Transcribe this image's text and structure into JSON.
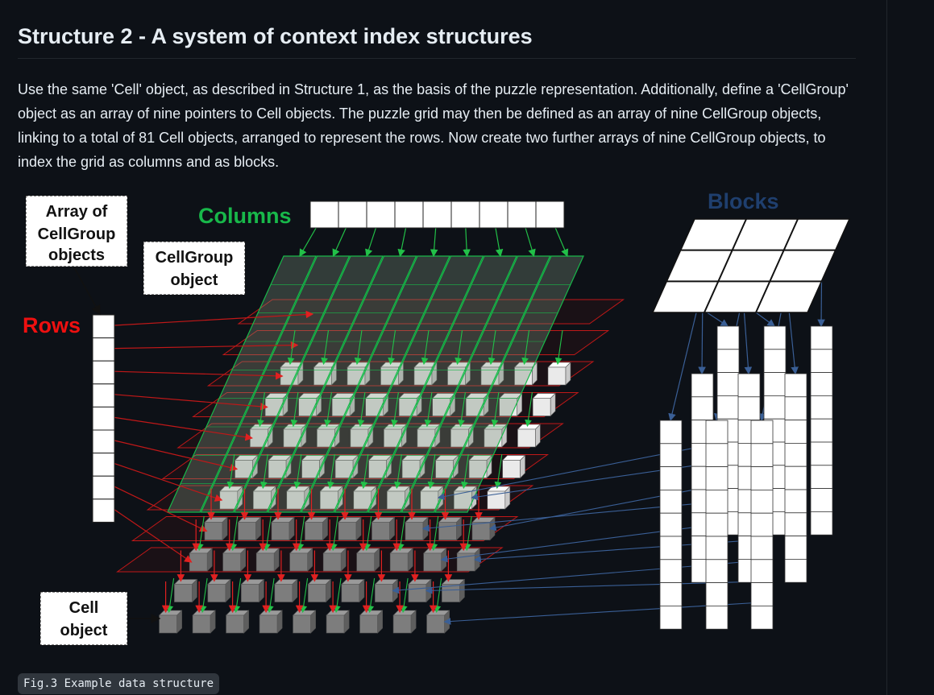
{
  "heading": "Structure 2 - A system of context index structures",
  "paragraph": "Use the same 'Cell' object, as described in Structure 1, as the basis of the puzzle representation. Additionally, define a 'CellGroup' object as an array of nine pointers to Cell objects. The puzzle grid may then be defined as an array of nine CellGroup objects, linking to a total of 81 Cell objects, arranged to represent the rows. Now create two further arrays of nine CellGroup objects, to index the grid as columns and as blocks.",
  "diagram": {
    "label_array_of_cellgroup": [
      "Array of",
      "CellGroup",
      "objects"
    ],
    "label_cellgroup_object": [
      "CellGroup",
      "object"
    ],
    "label_cell_object": [
      "Cell",
      "object"
    ],
    "label_columns": "Columns",
    "label_rows": "Rows",
    "label_blocks": "Blocks",
    "colors": {
      "columns": "#18b84a",
      "rows": "#e01010",
      "blocks": "#1f3f6e",
      "row_arrows": "#c01818",
      "column_arrows": "#22c048",
      "block_arrows": "#3a5f96"
    }
  },
  "caption": "Fig.3 Example data structure"
}
